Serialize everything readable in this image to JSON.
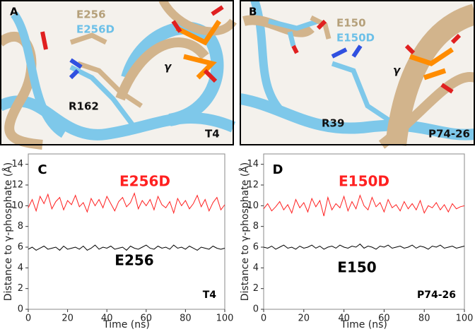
{
  "figures": [
    {
      "label": "A",
      "residue_wt": "E256",
      "residue_mut": "E256D",
      "residue_arg": "R162",
      "gamma": "γ",
      "name": "T4"
    },
    {
      "label": "B",
      "residue_wt": "E150",
      "residue_mut": "E150D",
      "residue_arg": "R39",
      "gamma": "γ",
      "name": "P74-26"
    }
  ],
  "chart_data": [
    {
      "type": "line",
      "panel": "C",
      "note": "T4",
      "xlabel": "Time (ns)",
      "ylabel": "Distance to γ-phosphate (Å)",
      "xlim": [
        0,
        100
      ],
      "xticks": [
        0,
        20,
        40,
        60,
        80,
        100
      ],
      "ylim": [
        0,
        15
      ],
      "yticks": [
        0,
        2,
        4,
        6,
        8,
        10,
        12,
        14
      ],
      "x": [
        0,
        2,
        4,
        6,
        8,
        10,
        12,
        14,
        16,
        18,
        20,
        22,
        24,
        26,
        28,
        30,
        32,
        34,
        36,
        38,
        40,
        42,
        44,
        46,
        48,
        50,
        52,
        54,
        56,
        58,
        60,
        62,
        64,
        66,
        68,
        70,
        72,
        74,
        76,
        78,
        80,
        82,
        84,
        86,
        88,
        90,
        92,
        94,
        96,
        98,
        100
      ],
      "series": [
        {
          "name": "E256D",
          "color": "#ff2020",
          "values": [
            9.8,
            10.6,
            9.5,
            10.9,
            10.2,
            11.1,
            9.7,
            10.4,
            10.8,
            9.6,
            10.5,
            10.1,
            11.0,
            9.9,
            10.3,
            9.4,
            10.7,
            10.0,
            10.6,
            9.8,
            10.9,
            10.2,
            9.5,
            10.4,
            10.8,
            9.9,
            10.3,
            11.2,
            9.7,
            10.5,
            10.0,
            10.6,
            9.6,
            10.9,
            10.1,
            9.8,
            10.4,
            9.3,
            10.7,
            10.0,
            10.5,
            9.7,
            10.2,
            11.0,
            9.9,
            10.6,
            9.5,
            10.3,
            10.8,
            9.6,
            10.1
          ]
        },
        {
          "name": "E256",
          "color": "#000000",
          "values": [
            5.8,
            6.0,
            5.7,
            5.9,
            6.1,
            5.8,
            5.9,
            6.0,
            5.7,
            6.1,
            5.8,
            5.9,
            6.0,
            5.8,
            6.1,
            5.7,
            5.9,
            6.2,
            5.8,
            6.0,
            5.9,
            6.1,
            5.8,
            5.9,
            6.0,
            5.7,
            6.1,
            5.9,
            5.8,
            6.0,
            6.2,
            5.9,
            5.8,
            6.1,
            5.9,
            6.0,
            5.8,
            6.2,
            5.9,
            6.0,
            5.8,
            6.1,
            5.9,
            5.7,
            6.0,
            5.9,
            5.8,
            6.1,
            5.9,
            5.8,
            5.9
          ]
        }
      ]
    },
    {
      "type": "line",
      "panel": "D",
      "note": "P74-26",
      "xlabel": "Time (ns)",
      "ylabel": "Distance to γ-phosphate (Å)",
      "xlim": [
        0,
        100
      ],
      "xticks": [
        0,
        20,
        40,
        60,
        80,
        100
      ],
      "ylim": [
        0,
        15
      ],
      "yticks": [
        0,
        2,
        4,
        6,
        8,
        10,
        12,
        14
      ],
      "x": [
        0,
        2,
        4,
        6,
        8,
        10,
        12,
        14,
        16,
        18,
        20,
        22,
        24,
        26,
        28,
        30,
        32,
        34,
        36,
        38,
        40,
        42,
        44,
        46,
        48,
        50,
        52,
        54,
        56,
        58,
        60,
        62,
        64,
        66,
        68,
        70,
        72,
        74,
        76,
        78,
        80,
        82,
        84,
        86,
        88,
        90,
        92,
        94,
        96,
        98,
        100
      ],
      "series": [
        {
          "name": "E150D",
          "color": "#ff2020",
          "values": [
            9.7,
            10.2,
            9.5,
            9.9,
            10.4,
            9.6,
            10.1,
            9.3,
            10.6,
            9.8,
            10.3,
            9.4,
            10.7,
            9.9,
            10.5,
            9.0,
            10.8,
            9.6,
            10.2,
            9.8,
            10.9,
            9.5,
            10.4,
            9.7,
            11.0,
            10.0,
            9.6,
            10.8,
            9.9,
            10.3,
            9.4,
            10.6,
            9.8,
            10.1,
            9.5,
            10.4,
            9.7,
            10.2,
            9.6,
            10.5,
            9.3,
            10.0,
            9.8,
            10.3,
            9.6,
            10.1,
            9.4,
            10.2,
            9.7,
            9.9,
            10.0
          ]
        },
        {
          "name": "E150",
          "color": "#000000",
          "values": [
            6.0,
            5.9,
            6.1,
            5.8,
            6.0,
            6.2,
            5.9,
            6.0,
            5.8,
            6.1,
            5.9,
            6.0,
            6.2,
            5.9,
            6.1,
            5.8,
            6.0,
            6.1,
            5.9,
            6.2,
            6.0,
            5.9,
            6.1,
            6.0,
            6.3,
            5.9,
            6.1,
            6.0,
            5.8,
            6.1,
            6.0,
            6.2,
            5.9,
            6.0,
            6.1,
            5.9,
            6.0,
            6.2,
            5.9,
            6.1,
            6.0,
            5.8,
            6.1,
            6.0,
            6.2,
            5.9,
            6.0,
            6.1,
            5.9,
            6.0,
            6.1
          ]
        }
      ]
    }
  ]
}
